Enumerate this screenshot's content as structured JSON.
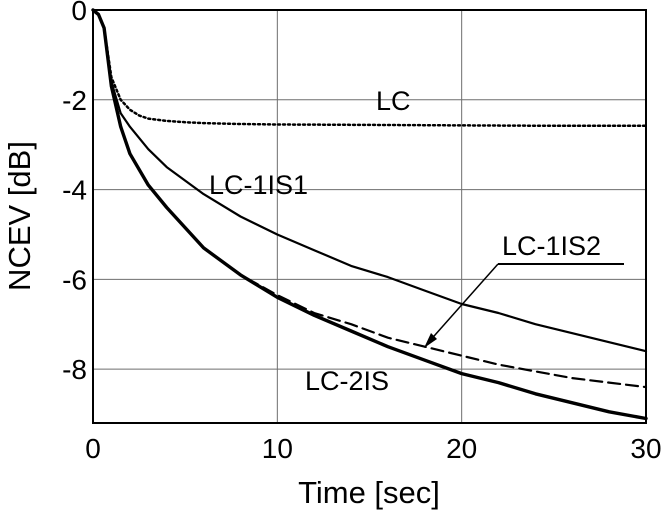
{
  "chart_data": {
    "type": "line",
    "xlabel": "Time [sec]",
    "ylabel": "NCEV [dB]",
    "xlim": [
      0,
      30
    ],
    "ylim": [
      -9.2,
      0
    ],
    "x_ticks": [
      0,
      10,
      20,
      30
    ],
    "y_ticks": [
      0,
      -2,
      -4,
      -6,
      -8
    ],
    "grid": true,
    "series": [
      {
        "name": "LC",
        "style": "dotted",
        "x": [
          0,
          0.3,
          0.6,
          1,
          1.5,
          2,
          2.5,
          3,
          4,
          5,
          6,
          8,
          10,
          15,
          20,
          25,
          30
        ],
        "y": [
          0,
          -0.1,
          -0.4,
          -1.5,
          -2.0,
          -2.22,
          -2.35,
          -2.42,
          -2.47,
          -2.5,
          -2.52,
          -2.54,
          -2.55,
          -2.56,
          -2.57,
          -2.58,
          -2.58
        ]
      },
      {
        "name": "LC-1IS1",
        "style": "solid",
        "x": [
          0,
          0.3,
          0.6,
          1,
          1.5,
          2,
          3,
          4,
          6,
          8,
          10,
          12,
          14,
          16,
          18,
          20,
          22,
          24,
          26,
          28,
          30
        ],
        "y": [
          0,
          -0.1,
          -0.4,
          -1.6,
          -2.3,
          -2.6,
          -3.1,
          -3.5,
          -4.1,
          -4.6,
          -5.0,
          -5.35,
          -5.7,
          -5.95,
          -6.25,
          -6.55,
          -6.75,
          -7.0,
          -7.2,
          -7.4,
          -7.6
        ]
      },
      {
        "name": "LC-1IS2",
        "style": "dashed",
        "x": [
          0,
          0.3,
          0.6,
          1,
          1.5,
          2,
          3,
          4,
          6,
          8,
          10,
          12,
          14,
          16,
          18,
          20,
          22,
          24,
          26,
          28,
          30
        ],
        "y": [
          0,
          -0.1,
          -0.4,
          -1.7,
          -2.6,
          -3.2,
          -3.9,
          -4.4,
          -5.3,
          -5.9,
          -6.35,
          -6.75,
          -7.0,
          -7.3,
          -7.5,
          -7.7,
          -7.9,
          -8.05,
          -8.2,
          -8.3,
          -8.4
        ]
      },
      {
        "name": "LC-2IS",
        "style": "thick",
        "x": [
          0,
          0.3,
          0.6,
          1,
          1.5,
          2,
          3,
          4,
          6,
          8,
          10,
          12,
          14,
          16,
          18,
          20,
          22,
          24,
          26,
          28,
          30
        ],
        "y": [
          0,
          -0.1,
          -0.4,
          -1.7,
          -2.6,
          -3.2,
          -3.9,
          -4.4,
          -5.3,
          -5.9,
          -6.4,
          -6.8,
          -7.15,
          -7.5,
          -7.8,
          -8.1,
          -8.3,
          -8.55,
          -8.75,
          -8.95,
          -9.1
        ]
      }
    ],
    "annotations": [
      {
        "text": "LC",
        "series": "LC"
      },
      {
        "text": "LC-1IS1",
        "series": "LC-1IS1"
      },
      {
        "text": "LC-1IS2",
        "series": "LC-1IS2",
        "underlined": true,
        "arrow": true
      },
      {
        "text": "LC-2IS",
        "series": "LC-2IS"
      }
    ]
  }
}
